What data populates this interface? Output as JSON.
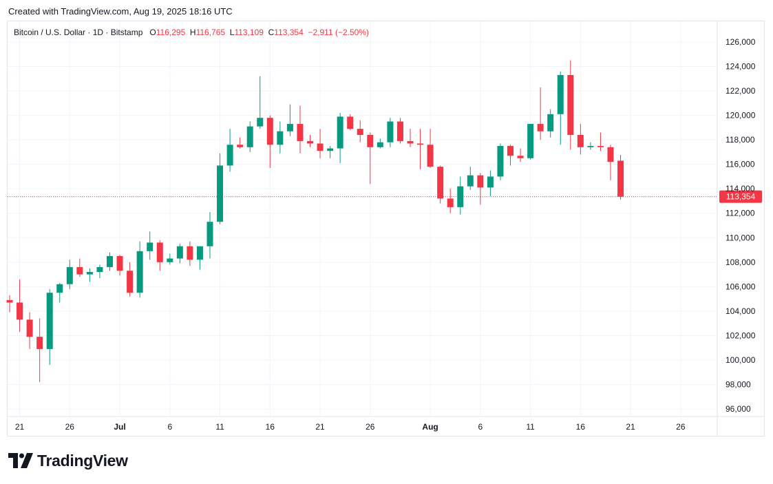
{
  "caption": "Created with TradingView.com, Aug 19, 2025 18:16 UTC",
  "legend": {
    "symbol": "Bitcoin / U.S. Dollar · 1D · Bitstamp",
    "o_label": "O",
    "o_value": "116,295",
    "h_label": "H",
    "h_value": "116,765",
    "l_label": "L",
    "l_value": "113,109",
    "c_label": "C",
    "c_value": "113,354",
    "change": "−2,911 (−2.50%)"
  },
  "brand": "TradingView",
  "colors": {
    "up": "#089981",
    "down": "#f23645",
    "grid": "#f0f3fa",
    "text": "#131722"
  },
  "chart_data": {
    "type": "candlestick",
    "title": "Bitcoin / U.S. Dollar · 1D · Bitstamp",
    "ylim": [
      95000,
      127000
    ],
    "y_ticks": [
      96000,
      98000,
      100000,
      102000,
      104000,
      106000,
      108000,
      110000,
      112000,
      114000,
      116000,
      118000,
      120000,
      122000,
      124000,
      126000
    ],
    "y_tick_labels": [
      "96,000",
      "98,000",
      "100,000",
      "102,000",
      "104,000",
      "106,000",
      "108,000",
      "110,000",
      "112,000",
      "114,000",
      "116,000",
      "118,000",
      "120,000",
      "122,000",
      "124,000",
      "126,000"
    ],
    "x_ticks": [
      {
        "i": 1,
        "label": "21"
      },
      {
        "i": 6,
        "label": "26"
      },
      {
        "i": 11,
        "label": "Jul"
      },
      {
        "i": 16,
        "label": "6"
      },
      {
        "i": 21,
        "label": "11"
      },
      {
        "i": 26,
        "label": "16"
      },
      {
        "i": 31,
        "label": "21"
      },
      {
        "i": 36,
        "label": "26"
      },
      {
        "i": 42,
        "label": "Aug"
      },
      {
        "i": 47,
        "label": "6"
      },
      {
        "i": 52,
        "label": "11"
      },
      {
        "i": 57,
        "label": "16"
      },
      {
        "i": 62,
        "label": "21"
      },
      {
        "i": 67,
        "label": "26"
      }
    ],
    "last_price": 113354,
    "last_price_label": "113,354",
    "candles": [
      {
        "o": 104900,
        "h": 105300,
        "l": 103900,
        "c": 104700
      },
      {
        "o": 104700,
        "h": 106600,
        "l": 102300,
        "c": 103300
      },
      {
        "o": 103300,
        "h": 103900,
        "l": 100900,
        "c": 101900
      },
      {
        "o": 101900,
        "h": 103400,
        "l": 98200,
        "c": 100900
      },
      {
        "o": 100900,
        "h": 105800,
        "l": 99600,
        "c": 105500
      },
      {
        "o": 105500,
        "h": 106300,
        "l": 104700,
        "c": 106200
      },
      {
        "o": 106200,
        "h": 108200,
        "l": 105800,
        "c": 107600
      },
      {
        "o": 107600,
        "h": 108300,
        "l": 106800,
        "c": 107000
      },
      {
        "o": 107000,
        "h": 107500,
        "l": 106400,
        "c": 107200
      },
      {
        "o": 107200,
        "h": 107800,
        "l": 106700,
        "c": 107600
      },
      {
        "o": 107600,
        "h": 108800,
        "l": 107300,
        "c": 108500
      },
      {
        "o": 108500,
        "h": 108600,
        "l": 106900,
        "c": 107300
      },
      {
        "o": 107300,
        "h": 108000,
        "l": 105200,
        "c": 105500
      },
      {
        "o": 105500,
        "h": 109700,
        "l": 105100,
        "c": 108900
      },
      {
        "o": 108900,
        "h": 110500,
        "l": 108200,
        "c": 109600
      },
      {
        "o": 109600,
        "h": 109800,
        "l": 107300,
        "c": 108000
      },
      {
        "o": 108000,
        "h": 108700,
        "l": 107800,
        "c": 108300
      },
      {
        "o": 108300,
        "h": 109500,
        "l": 107900,
        "c": 109300
      },
      {
        "o": 109300,
        "h": 109700,
        "l": 107700,
        "c": 108200
      },
      {
        "o": 108200,
        "h": 109300,
        "l": 107400,
        "c": 109300
      },
      {
        "o": 109300,
        "h": 112100,
        "l": 108300,
        "c": 111300
      },
      {
        "o": 111300,
        "h": 116900,
        "l": 111100,
        "c": 115900
      },
      {
        "o": 115900,
        "h": 118900,
        "l": 115400,
        "c": 117600
      },
      {
        "o": 117600,
        "h": 118200,
        "l": 117300,
        "c": 117400
      },
      {
        "o": 117400,
        "h": 119500,
        "l": 117000,
        "c": 119100
      },
      {
        "o": 119100,
        "h": 123200,
        "l": 118900,
        "c": 119800
      },
      {
        "o": 119800,
        "h": 120000,
        "l": 115700,
        "c": 117600
      },
      {
        "o": 117600,
        "h": 119500,
        "l": 116900,
        "c": 118700
      },
      {
        "o": 118700,
        "h": 120900,
        "l": 118300,
        "c": 119300
      },
      {
        "o": 119300,
        "h": 120800,
        "l": 116900,
        "c": 117900
      },
      {
        "o": 117900,
        "h": 118400,
        "l": 117400,
        "c": 117700
      },
      {
        "o": 117700,
        "h": 118900,
        "l": 116500,
        "c": 117100
      },
      {
        "o": 117100,
        "h": 117500,
        "l": 116500,
        "c": 117300
      },
      {
        "o": 117300,
        "h": 120200,
        "l": 116100,
        "c": 119900
      },
      {
        "o": 119900,
        "h": 120100,
        "l": 118800,
        "c": 118900
      },
      {
        "o": 118900,
        "h": 119600,
        "l": 117800,
        "c": 118400
      },
      {
        "o": 118400,
        "h": 118600,
        "l": 114400,
        "c": 117400
      },
      {
        "o": 117400,
        "h": 118100,
        "l": 117300,
        "c": 117800
      },
      {
        "o": 117800,
        "h": 119800,
        "l": 117400,
        "c": 119500
      },
      {
        "o": 119500,
        "h": 119800,
        "l": 117700,
        "c": 117900
      },
      {
        "o": 117900,
        "h": 118900,
        "l": 117400,
        "c": 117700
      },
      {
        "o": 117700,
        "h": 118900,
        "l": 115600,
        "c": 117600
      },
      {
        "o": 117600,
        "h": 118900,
        "l": 115700,
        "c": 115800
      },
      {
        "o": 115800,
        "h": 115900,
        "l": 112800,
        "c": 113200
      },
      {
        "o": 113200,
        "h": 114000,
        "l": 112000,
        "c": 112500
      },
      {
        "o": 112500,
        "h": 115000,
        "l": 111900,
        "c": 114200
      },
      {
        "o": 114200,
        "h": 115800,
        "l": 113900,
        "c": 115100
      },
      {
        "o": 115100,
        "h": 115300,
        "l": 112700,
        "c": 114100
      },
      {
        "o": 114100,
        "h": 115500,
        "l": 113400,
        "c": 115000
      },
      {
        "o": 115000,
        "h": 117700,
        "l": 114700,
        "c": 117500
      },
      {
        "o": 117500,
        "h": 117600,
        "l": 115900,
        "c": 116700
      },
      {
        "o": 116700,
        "h": 117300,
        "l": 116200,
        "c": 116500
      },
      {
        "o": 116500,
        "h": 119300,
        "l": 116400,
        "c": 119300
      },
      {
        "o": 119300,
        "h": 122300,
        "l": 118000,
        "c": 118700
      },
      {
        "o": 118700,
        "h": 120500,
        "l": 118200,
        "c": 120100
      },
      {
        "o": 120100,
        "h": 123600,
        "l": 117600,
        "c": 123300
      },
      {
        "o": 123300,
        "h": 124500,
        "l": 117200,
        "c": 118400
      },
      {
        "o": 118400,
        "h": 119300,
        "l": 116800,
        "c": 117400
      },
      {
        "o": 117400,
        "h": 117800,
        "l": 117200,
        "c": 117500
      },
      {
        "o": 117500,
        "h": 118600,
        "l": 117100,
        "c": 117400
      },
      {
        "o": 117400,
        "h": 117600,
        "l": 114700,
        "c": 116200
      },
      {
        "o": 116295,
        "h": 116765,
        "l": 113109,
        "c": 113354
      }
    ]
  }
}
